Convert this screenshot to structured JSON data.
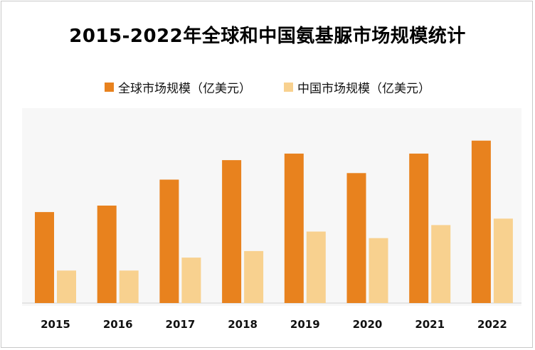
{
  "title": "2015-2022年全球和中国氨基脲市场规模统计",
  "chart_data": {
    "type": "bar",
    "title": "2015-2022年全球和中国氨基脲市场规模统计",
    "categories": [
      "2015",
      "2016",
      "2017",
      "2018",
      "2019",
      "2020",
      "2021",
      "2022"
    ],
    "series": [
      {
        "name": "全球市场规模（亿美元）",
        "color": "#e8821e",
        "values": [
          1.4,
          1.5,
          1.9,
          2.2,
          2.3,
          2.0,
          2.3,
          2.5
        ]
      },
      {
        "name": "中国市场规模（亿美元）",
        "color": "#f8d18f",
        "values": [
          0.5,
          0.5,
          0.7,
          0.8,
          1.1,
          1.0,
          1.2,
          1.3
        ]
      }
    ],
    "xlabel": "",
    "ylabel": "",
    "ylim": [
      0,
      3.0
    ],
    "grid": false,
    "legend_position": "top"
  }
}
